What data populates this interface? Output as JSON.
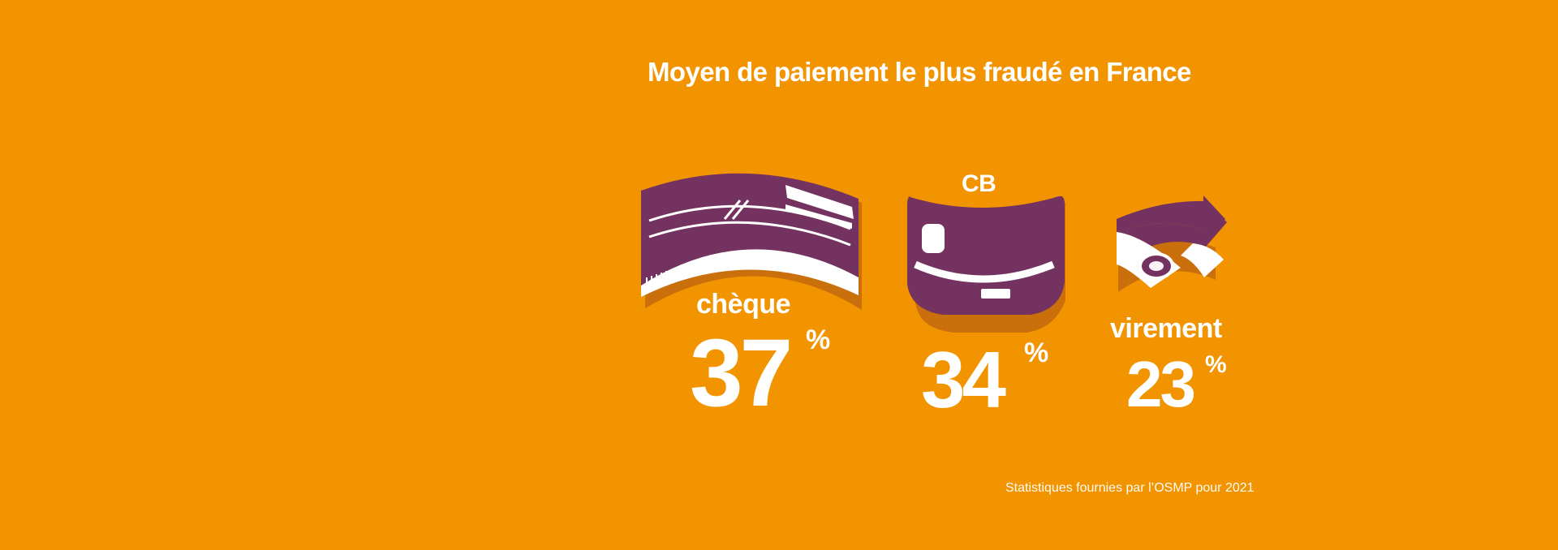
{
  "title": "Moyen de paiement le plus fraudé en France",
  "categories": [
    {
      "label": "chèque",
      "value": "37",
      "unit": "%",
      "icon": "cheque-icon"
    },
    {
      "label": "CB",
      "value": "34",
      "unit": "%",
      "icon": "bank-card-icon"
    },
    {
      "label": "virement",
      "value": "23",
      "unit": "%",
      "icon": "transfer-icon"
    }
  ],
  "source_note": "Statistiques fournies par l’OSMP pour 2021",
  "colors": {
    "background": "#f29400",
    "accent": "#73325f",
    "text": "#ffffff",
    "shadow": "#c96f0c"
  }
}
